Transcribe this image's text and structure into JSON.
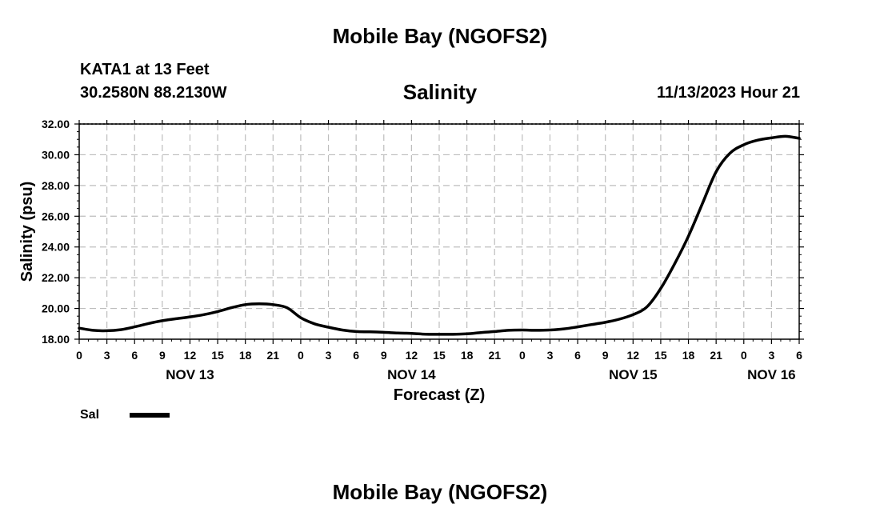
{
  "header": {
    "main_title": "Mobile Bay (NGOFS2)",
    "station": "KATA1 at 13 Feet",
    "coords": "30.2580N  88.2130W",
    "chart_title": "Salinity",
    "timestamp": "11/13/2023 Hour 21"
  },
  "footer": {
    "title": "Mobile Bay (NGOFS2)"
  },
  "legend": {
    "label": "Sal",
    "color": "#000000"
  },
  "chart_data": {
    "type": "line",
    "title": "Salinity",
    "xlabel": "Forecast (Z)",
    "ylabel": "Salinity (psu)",
    "xlim": [
      0,
      78
    ],
    "ylim": [
      18,
      32
    ],
    "y_ticks": [
      "18.00",
      "20.00",
      "22.00",
      "24.00",
      "26.00",
      "28.00",
      "30.00",
      "32.00"
    ],
    "x_ticks": [
      {
        "h": 0,
        "label": "0"
      },
      {
        "h": 3,
        "label": "3"
      },
      {
        "h": 6,
        "label": "6"
      },
      {
        "h": 9,
        "label": "9"
      },
      {
        "h": 12,
        "label": "12"
      },
      {
        "h": 15,
        "label": "15"
      },
      {
        "h": 18,
        "label": "18"
      },
      {
        "h": 21,
        "label": "21"
      },
      {
        "h": 24,
        "label": "0"
      },
      {
        "h": 27,
        "label": "3"
      },
      {
        "h": 30,
        "label": "6"
      },
      {
        "h": 33,
        "label": "9"
      },
      {
        "h": 36,
        "label": "12"
      },
      {
        "h": 39,
        "label": "15"
      },
      {
        "h": 42,
        "label": "18"
      },
      {
        "h": 45,
        "label": "21"
      },
      {
        "h": 48,
        "label": "0"
      },
      {
        "h": 51,
        "label": "3"
      },
      {
        "h": 54,
        "label": "6"
      },
      {
        "h": 57,
        "label": "9"
      },
      {
        "h": 60,
        "label": "12"
      },
      {
        "h": 63,
        "label": "15"
      },
      {
        "h": 66,
        "label": "18"
      },
      {
        "h": 69,
        "label": "21"
      },
      {
        "h": 72,
        "label": "0"
      },
      {
        "h": 75,
        "label": "3"
      },
      {
        "h": 78,
        "label": "6"
      }
    ],
    "date_labels": [
      {
        "h": 12,
        "label": "NOV 13"
      },
      {
        "h": 36,
        "label": "NOV 14"
      },
      {
        "h": 60,
        "label": "NOV 15"
      },
      {
        "h": 75,
        "label": "NOV 16"
      }
    ],
    "series": [
      {
        "name": "Sal",
        "x": [
          0,
          1.5,
          3,
          4.5,
          6,
          7.5,
          9,
          10.5,
          12,
          13.5,
          15,
          16.5,
          18,
          19.5,
          21,
          22.5,
          24,
          25.5,
          27,
          28.5,
          30,
          31.5,
          33,
          34.5,
          36,
          37.5,
          39,
          40.5,
          42,
          43.5,
          45,
          46.5,
          48,
          49.5,
          51,
          52.5,
          54,
          55.5,
          57,
          58.5,
          60,
          61.5,
          63,
          64.5,
          66,
          67.5,
          69,
          70.5,
          72,
          73.5,
          75,
          76.5,
          78
        ],
        "values": [
          18.72,
          18.58,
          18.55,
          18.62,
          18.8,
          19.02,
          19.2,
          19.33,
          19.45,
          19.6,
          19.8,
          20.05,
          20.25,
          20.3,
          20.25,
          20.05,
          19.4,
          19.0,
          18.78,
          18.6,
          18.5,
          18.48,
          18.45,
          18.4,
          18.38,
          18.33,
          18.32,
          18.32,
          18.35,
          18.43,
          18.5,
          18.58,
          18.6,
          18.58,
          18.6,
          18.67,
          18.8,
          18.95,
          19.1,
          19.3,
          19.6,
          20.1,
          21.3,
          22.9,
          24.7,
          26.8,
          28.9,
          30.1,
          30.65,
          30.95,
          31.1,
          31.2,
          31.07
        ]
      }
    ]
  }
}
